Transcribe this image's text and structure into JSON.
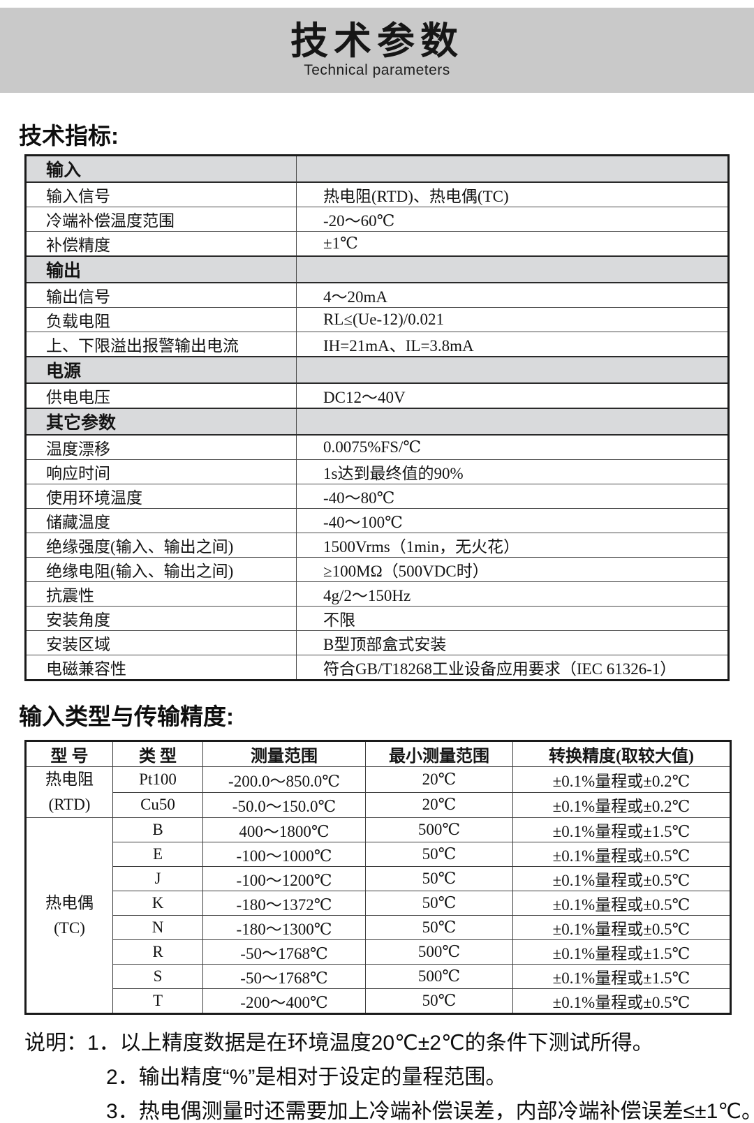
{
  "header": {
    "title": "技术参数",
    "subtitle": "Technical parameters"
  },
  "sections": {
    "spec_heading": "技术指标:",
    "accuracy_heading": "输入类型与传输精度:"
  },
  "spec_table": {
    "rows": [
      {
        "type": "section",
        "label": "输入",
        "value": ""
      },
      {
        "type": "row",
        "label": "输入信号",
        "value": "热电阻(RTD)、热电偶(TC)"
      },
      {
        "type": "row",
        "label": "冷端补偿温度范围",
        "value": "-20～60℃"
      },
      {
        "type": "row",
        "label": "补偿精度",
        "value": "±1℃"
      },
      {
        "type": "section",
        "label": "输出",
        "value": ""
      },
      {
        "type": "row",
        "label": "输出信号",
        "value": "4～20mA"
      },
      {
        "type": "row",
        "label": "负载电阻",
        "value": "RL≤(Ue-12)/0.021"
      },
      {
        "type": "row",
        "label": "上、下限溢出报警输出电流",
        "value": "IH=21mA、IL=3.8mA"
      },
      {
        "type": "section",
        "label": "电源",
        "value": ""
      },
      {
        "type": "row",
        "label": "供电电压",
        "value": "DC12～40V"
      },
      {
        "type": "section",
        "label": "其它参数",
        "value": ""
      },
      {
        "type": "row",
        "label": "温度漂移",
        "value": "0.0075%FS/℃"
      },
      {
        "type": "row",
        "label": "响应时间",
        "value": "1s达到最终值的90%"
      },
      {
        "type": "row",
        "label": "使用环境温度",
        "value": "-40～80℃"
      },
      {
        "type": "row",
        "label": "储藏温度",
        "value": "-40～100℃"
      },
      {
        "type": "row",
        "label": "绝缘强度(输入、输出之间)",
        "value": "1500Vrms（1min，无火花）"
      },
      {
        "type": "row",
        "label": "绝缘电阻(输入、输出之间)",
        "value": "≥100MΩ（500VDC时）"
      },
      {
        "type": "row",
        "label": "抗震性",
        "value": "4g/2～150Hz"
      },
      {
        "type": "row",
        "label": "安装角度",
        "value": "不限"
      },
      {
        "type": "row",
        "label": "安装区域",
        "value": "B型顶部盒式安装"
      },
      {
        "type": "row",
        "label": "电磁兼容性",
        "value": "符合GB/T18268工业设备应用要求（IEC 61326-1）"
      }
    ]
  },
  "accuracy_table": {
    "headers": [
      "型 号",
      "类 型",
      "测量范围",
      "最小测量范围",
      "转换精度(取较大值)"
    ],
    "groups": [
      {
        "model_lines": [
          "热电阻",
          "(RTD)"
        ],
        "rows": [
          {
            "type": "Pt100",
            "range": "-200.0～850.0℃",
            "min_range": "20℃",
            "accuracy": "±0.1%量程或±0.2℃"
          },
          {
            "type": "Cu50",
            "range": "-50.0～150.0℃",
            "min_range": "20℃",
            "accuracy": "±0.1%量程或±0.2℃"
          }
        ]
      },
      {
        "model_lines": [
          "热电偶",
          "(TC)"
        ],
        "rows": [
          {
            "type": "B",
            "range": "400～1800℃",
            "min_range": "500℃",
            "accuracy": "±0.1%量程或±1.5℃"
          },
          {
            "type": "E",
            "range": "-100～1000℃",
            "min_range": "50℃",
            "accuracy": "±0.1%量程或±0.5℃"
          },
          {
            "type": "J",
            "range": "-100～1200℃",
            "min_range": "50℃",
            "accuracy": "±0.1%量程或±0.5℃"
          },
          {
            "type": "K",
            "range": "-180～1372℃",
            "min_range": "50℃",
            "accuracy": "±0.1%量程或±0.5℃"
          },
          {
            "type": "N",
            "range": "-180～1300℃",
            "min_range": "50℃",
            "accuracy": "±0.1%量程或±0.5℃"
          },
          {
            "type": "R",
            "range": "-50～1768℃",
            "min_range": "500℃",
            "accuracy": "±0.1%量程或±1.5℃"
          },
          {
            "type": "S",
            "range": "-50～1768℃",
            "min_range": "500℃",
            "accuracy": "±0.1%量程或±1.5℃"
          },
          {
            "type": "T",
            "range": "-200～400℃",
            "min_range": "50℃",
            "accuracy": "±0.1%量程或±0.5℃"
          }
        ]
      }
    ]
  },
  "notes": {
    "prefix": "说明：",
    "items": [
      "1．以上精度数据是在环境温度20℃±2℃的条件下测试所得。",
      "2．输出精度“%”是相对于设定的量程范围。",
      "3．热电偶测量时还需要加上冷端补偿误差，内部冷端补偿误差≤±1℃。"
    ]
  },
  "colors": {
    "band_bg": "#c9c9c9",
    "section_row_bg": "#d9dadc",
    "border_dark": "#1a1a1a",
    "text": "#111111"
  }
}
